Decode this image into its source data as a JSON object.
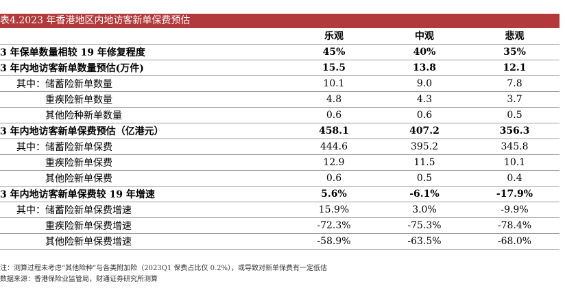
{
  "title": "表4.2023 年香港地区内地访客新单保费预估",
  "headers": [
    "乐观",
    "中观",
    "悲观"
  ],
  "rows": [
    {
      "label": "3 年保单数量相较 19 年修复程度",
      "v": [
        "45%",
        "40%",
        "35%"
      ]
    },
    {
      "label": "3 年内地访客新单数量预估(万件)",
      "v": [
        "15.5",
        "13.8",
        "12.1"
      ]
    },
    {
      "label": "其中：储蓄险新单数量",
      "v": [
        "10.1",
        "9.0",
        "7.8"
      ]
    },
    {
      "label": "重疾险新单数量",
      "v": [
        "4.8",
        "4.3",
        "3.7"
      ]
    },
    {
      "label": "其他险种新单数量",
      "v": [
        "0.6",
        "0.6",
        "0.5"
      ]
    },
    {
      "label": "3 年内地访客新单保费预估（亿港元）",
      "v": [
        "458.1",
        "407.2",
        "356.3"
      ]
    },
    {
      "label": "其中：储蓄险新单保费",
      "v": [
        "444.6",
        "395.2",
        "345.8"
      ]
    },
    {
      "label": "重疾险新单保费",
      "v": [
        "12.9",
        "11.5",
        "10.1"
      ]
    },
    {
      "label": "其他险新单保费",
      "v": [
        "0.6",
        "0.5",
        "0.4"
      ]
    },
    {
      "label": "3 年内地访客新单保费较 19 年增速",
      "v": [
        "5.6%",
        "-6.1%",
        "-17.9%"
      ]
    },
    {
      "label": "其中：储蓄险新单保费增速",
      "v": [
        "15.9%",
        "3.0%",
        "-9.9%"
      ]
    },
    {
      "label": "重疾险新单保费增速",
      "v": [
        "-72.3%",
        "-75.3%",
        "-78.4%"
      ]
    },
    {
      "label": "其他险新单保费增速",
      "v": [
        "-58.9%",
        "-63.5%",
        "-68.0%"
      ]
    }
  ],
  "notes": [
    "注：测算过程未考虑“其他险种”与各类附加险（2023Q1 保费占比仅 0.2%），或导致对新单保费有一定低估",
    "数据来源：香港保险业监管局，财通证券研究所测算"
  ]
}
